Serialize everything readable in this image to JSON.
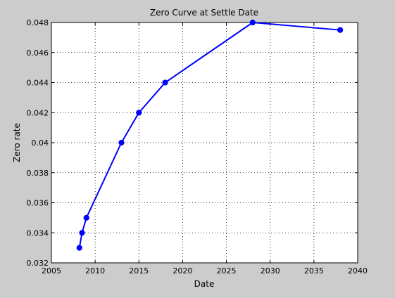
{
  "chart_data": {
    "type": "line",
    "title": "Zero Curve at Settle Date",
    "xlabel": "Date",
    "ylabel": "Zero rate",
    "xlim": [
      2005,
      2040
    ],
    "ylim": [
      0.032,
      0.048
    ],
    "xticks": [
      "2005",
      "2010",
      "2015",
      "2020",
      "2025",
      "2030",
      "2035",
      "2040"
    ],
    "yticks": [
      "0.032",
      "0.034",
      "0.036",
      "0.038",
      "0.04",
      "0.042",
      "0.044",
      "0.046",
      "0.048"
    ],
    "grid": true,
    "line_color": "#0000ff",
    "series": [
      {
        "x": [
          2008.2,
          2008.5,
          2009.0,
          2013.0,
          2015.0,
          2018.0,
          2028.0,
          2038.0
        ],
        "values": [
          0.033,
          0.034,
          0.035,
          0.04,
          0.042,
          0.044,
          0.048,
          0.0475
        ]
      }
    ]
  }
}
